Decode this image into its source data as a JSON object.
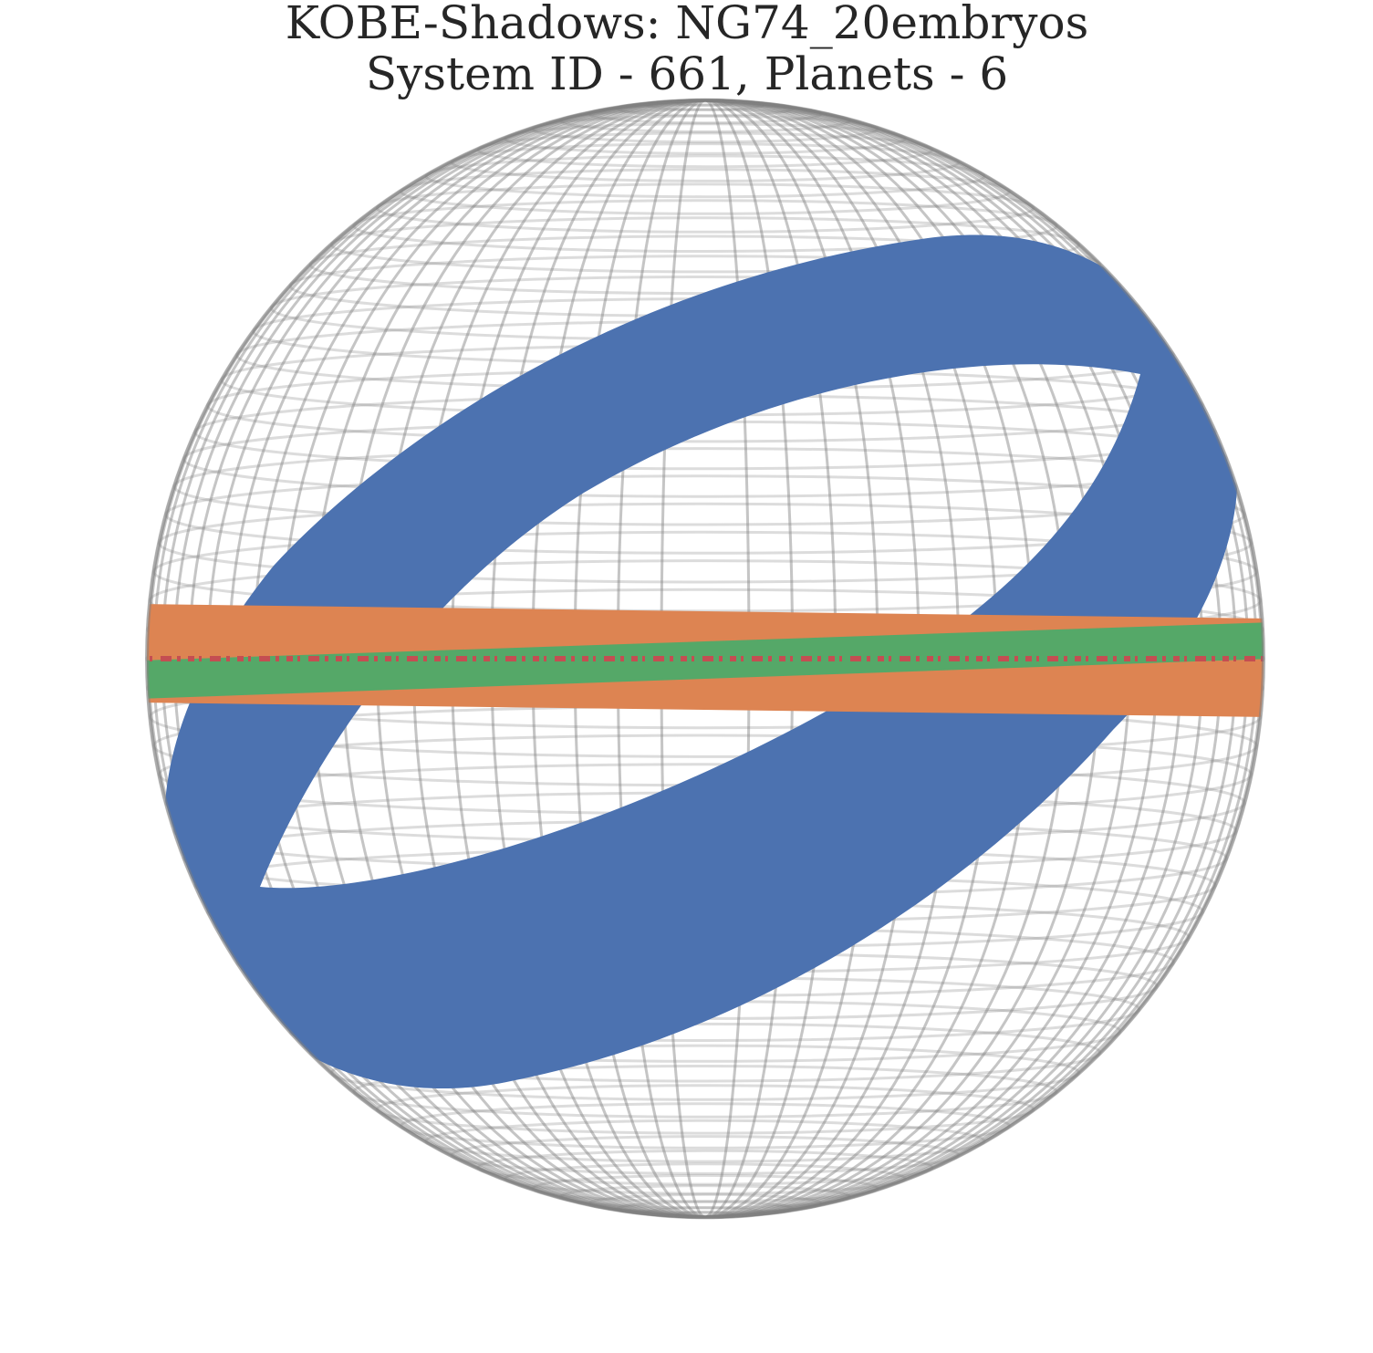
{
  "figure": {
    "title_line1": "KOBE-Shadows: NG74_20embryos",
    "title_line2": "System ID - 661, Planets - 6"
  },
  "colors": {
    "grid": "#808080",
    "band_blue": "#4c72b0",
    "band_orange": "#dd8452",
    "band_green": "#55a868",
    "band_red": "#c44e52",
    "text": "#262626"
  },
  "bands": [
    {
      "name": "blue-shadow-band",
      "color": "#4c72b0"
    },
    {
      "name": "orange-shadow-band",
      "color": "#dd8452"
    },
    {
      "name": "green-shadow-band",
      "color": "#55a868"
    },
    {
      "name": "red-shadow-band",
      "color": "#c44e52"
    }
  ]
}
